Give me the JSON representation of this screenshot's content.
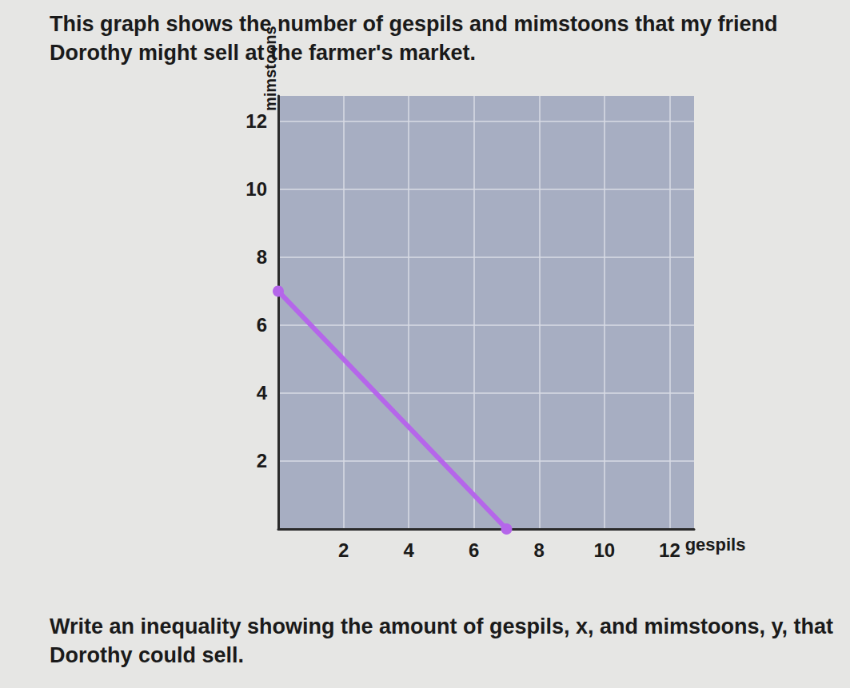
{
  "chart_data": {
    "type": "line",
    "title": "This graph shows the number of gespils and mimstoons that my friend Dorothy might sell at the farmer's market.",
    "annotations": [
      "Write an inequality showing the amount of gespils, x, and mimstoons, y, that Dorothy could sell."
    ],
    "x_label": "gespils",
    "y_label": "mimstoons",
    "x": [
      0,
      7
    ],
    "values": [
      7,
      0
    ],
    "color": "#b566ea",
    "marker": "circle",
    "xlim": [
      0,
      12.75
    ],
    "ylim": [
      0,
      12.75
    ],
    "xticks": [
      2,
      4,
      6,
      8,
      10,
      12
    ],
    "yticks": [
      2,
      4,
      6,
      8,
      10,
      12
    ],
    "grid": true
  }
}
